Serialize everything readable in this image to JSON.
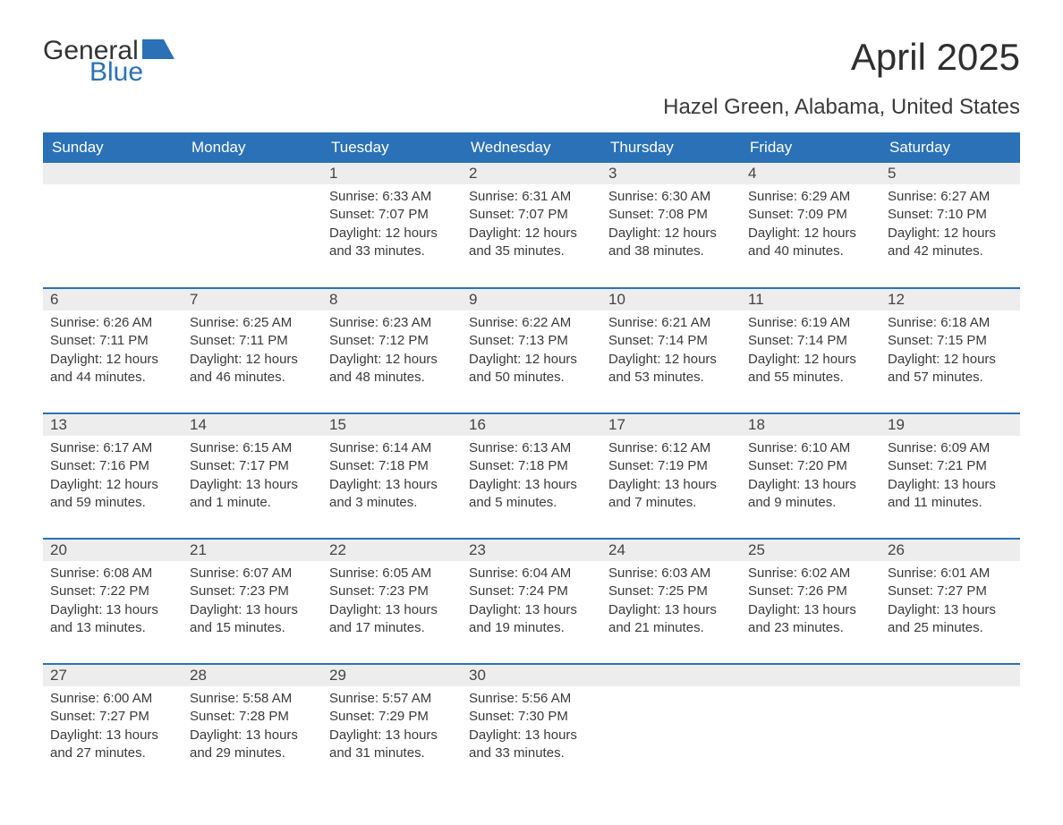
{
  "logo": {
    "word1": "General",
    "word2": "Blue",
    "shape_color": "#2b71b8"
  },
  "header": {
    "month_title": "April 2025",
    "location": "Hazel Green, Alabama, United States"
  },
  "colors": {
    "header_bg": "#2b71b8",
    "header_text": "#ffffff",
    "daynum_bg": "#ededed",
    "row_divider": "#2b71b8",
    "body_text": "#3a3a3a",
    "page_bg": "#ffffff"
  },
  "daynames": [
    "Sunday",
    "Monday",
    "Tuesday",
    "Wednesday",
    "Thursday",
    "Friday",
    "Saturday"
  ],
  "weeks": [
    [
      {
        "num": "",
        "sunrise": "",
        "sunset": "",
        "daylight": ""
      },
      {
        "num": "",
        "sunrise": "",
        "sunset": "",
        "daylight": ""
      },
      {
        "num": "1",
        "sunrise": "Sunrise: 6:33 AM",
        "sunset": "Sunset: 7:07 PM",
        "daylight": "Daylight: 12 hours and 33 minutes."
      },
      {
        "num": "2",
        "sunrise": "Sunrise: 6:31 AM",
        "sunset": "Sunset: 7:07 PM",
        "daylight": "Daylight: 12 hours and 35 minutes."
      },
      {
        "num": "3",
        "sunrise": "Sunrise: 6:30 AM",
        "sunset": "Sunset: 7:08 PM",
        "daylight": "Daylight: 12 hours and 38 minutes."
      },
      {
        "num": "4",
        "sunrise": "Sunrise: 6:29 AM",
        "sunset": "Sunset: 7:09 PM",
        "daylight": "Daylight: 12 hours and 40 minutes."
      },
      {
        "num": "5",
        "sunrise": "Sunrise: 6:27 AM",
        "sunset": "Sunset: 7:10 PM",
        "daylight": "Daylight: 12 hours and 42 minutes."
      }
    ],
    [
      {
        "num": "6",
        "sunrise": "Sunrise: 6:26 AM",
        "sunset": "Sunset: 7:11 PM",
        "daylight": "Daylight: 12 hours and 44 minutes."
      },
      {
        "num": "7",
        "sunrise": "Sunrise: 6:25 AM",
        "sunset": "Sunset: 7:11 PM",
        "daylight": "Daylight: 12 hours and 46 minutes."
      },
      {
        "num": "8",
        "sunrise": "Sunrise: 6:23 AM",
        "sunset": "Sunset: 7:12 PM",
        "daylight": "Daylight: 12 hours and 48 minutes."
      },
      {
        "num": "9",
        "sunrise": "Sunrise: 6:22 AM",
        "sunset": "Sunset: 7:13 PM",
        "daylight": "Daylight: 12 hours and 50 minutes."
      },
      {
        "num": "10",
        "sunrise": "Sunrise: 6:21 AM",
        "sunset": "Sunset: 7:14 PM",
        "daylight": "Daylight: 12 hours and 53 minutes."
      },
      {
        "num": "11",
        "sunrise": "Sunrise: 6:19 AM",
        "sunset": "Sunset: 7:14 PM",
        "daylight": "Daylight: 12 hours and 55 minutes."
      },
      {
        "num": "12",
        "sunrise": "Sunrise: 6:18 AM",
        "sunset": "Sunset: 7:15 PM",
        "daylight": "Daylight: 12 hours and 57 minutes."
      }
    ],
    [
      {
        "num": "13",
        "sunrise": "Sunrise: 6:17 AM",
        "sunset": "Sunset: 7:16 PM",
        "daylight": "Daylight: 12 hours and 59 minutes."
      },
      {
        "num": "14",
        "sunrise": "Sunrise: 6:15 AM",
        "sunset": "Sunset: 7:17 PM",
        "daylight": "Daylight: 13 hours and 1 minute."
      },
      {
        "num": "15",
        "sunrise": "Sunrise: 6:14 AM",
        "sunset": "Sunset: 7:18 PM",
        "daylight": "Daylight: 13 hours and 3 minutes."
      },
      {
        "num": "16",
        "sunrise": "Sunrise: 6:13 AM",
        "sunset": "Sunset: 7:18 PM",
        "daylight": "Daylight: 13 hours and 5 minutes."
      },
      {
        "num": "17",
        "sunrise": "Sunrise: 6:12 AM",
        "sunset": "Sunset: 7:19 PM",
        "daylight": "Daylight: 13 hours and 7 minutes."
      },
      {
        "num": "18",
        "sunrise": "Sunrise: 6:10 AM",
        "sunset": "Sunset: 7:20 PM",
        "daylight": "Daylight: 13 hours and 9 minutes."
      },
      {
        "num": "19",
        "sunrise": "Sunrise: 6:09 AM",
        "sunset": "Sunset: 7:21 PM",
        "daylight": "Daylight: 13 hours and 11 minutes."
      }
    ],
    [
      {
        "num": "20",
        "sunrise": "Sunrise: 6:08 AM",
        "sunset": "Sunset: 7:22 PM",
        "daylight": "Daylight: 13 hours and 13 minutes."
      },
      {
        "num": "21",
        "sunrise": "Sunrise: 6:07 AM",
        "sunset": "Sunset: 7:23 PM",
        "daylight": "Daylight: 13 hours and 15 minutes."
      },
      {
        "num": "22",
        "sunrise": "Sunrise: 6:05 AM",
        "sunset": "Sunset: 7:23 PM",
        "daylight": "Daylight: 13 hours and 17 minutes."
      },
      {
        "num": "23",
        "sunrise": "Sunrise: 6:04 AM",
        "sunset": "Sunset: 7:24 PM",
        "daylight": "Daylight: 13 hours and 19 minutes."
      },
      {
        "num": "24",
        "sunrise": "Sunrise: 6:03 AM",
        "sunset": "Sunset: 7:25 PM",
        "daylight": "Daylight: 13 hours and 21 minutes."
      },
      {
        "num": "25",
        "sunrise": "Sunrise: 6:02 AM",
        "sunset": "Sunset: 7:26 PM",
        "daylight": "Daylight: 13 hours and 23 minutes."
      },
      {
        "num": "26",
        "sunrise": "Sunrise: 6:01 AM",
        "sunset": "Sunset: 7:27 PM",
        "daylight": "Daylight: 13 hours and 25 minutes."
      }
    ],
    [
      {
        "num": "27",
        "sunrise": "Sunrise: 6:00 AM",
        "sunset": "Sunset: 7:27 PM",
        "daylight": "Daylight: 13 hours and 27 minutes."
      },
      {
        "num": "28",
        "sunrise": "Sunrise: 5:58 AM",
        "sunset": "Sunset: 7:28 PM",
        "daylight": "Daylight: 13 hours and 29 minutes."
      },
      {
        "num": "29",
        "sunrise": "Sunrise: 5:57 AM",
        "sunset": "Sunset: 7:29 PM",
        "daylight": "Daylight: 13 hours and 31 minutes."
      },
      {
        "num": "30",
        "sunrise": "Sunrise: 5:56 AM",
        "sunset": "Sunset: 7:30 PM",
        "daylight": "Daylight: 13 hours and 33 minutes."
      },
      {
        "num": "",
        "sunrise": "",
        "sunset": "",
        "daylight": ""
      },
      {
        "num": "",
        "sunrise": "",
        "sunset": "",
        "daylight": ""
      },
      {
        "num": "",
        "sunrise": "",
        "sunset": "",
        "daylight": ""
      }
    ]
  ]
}
